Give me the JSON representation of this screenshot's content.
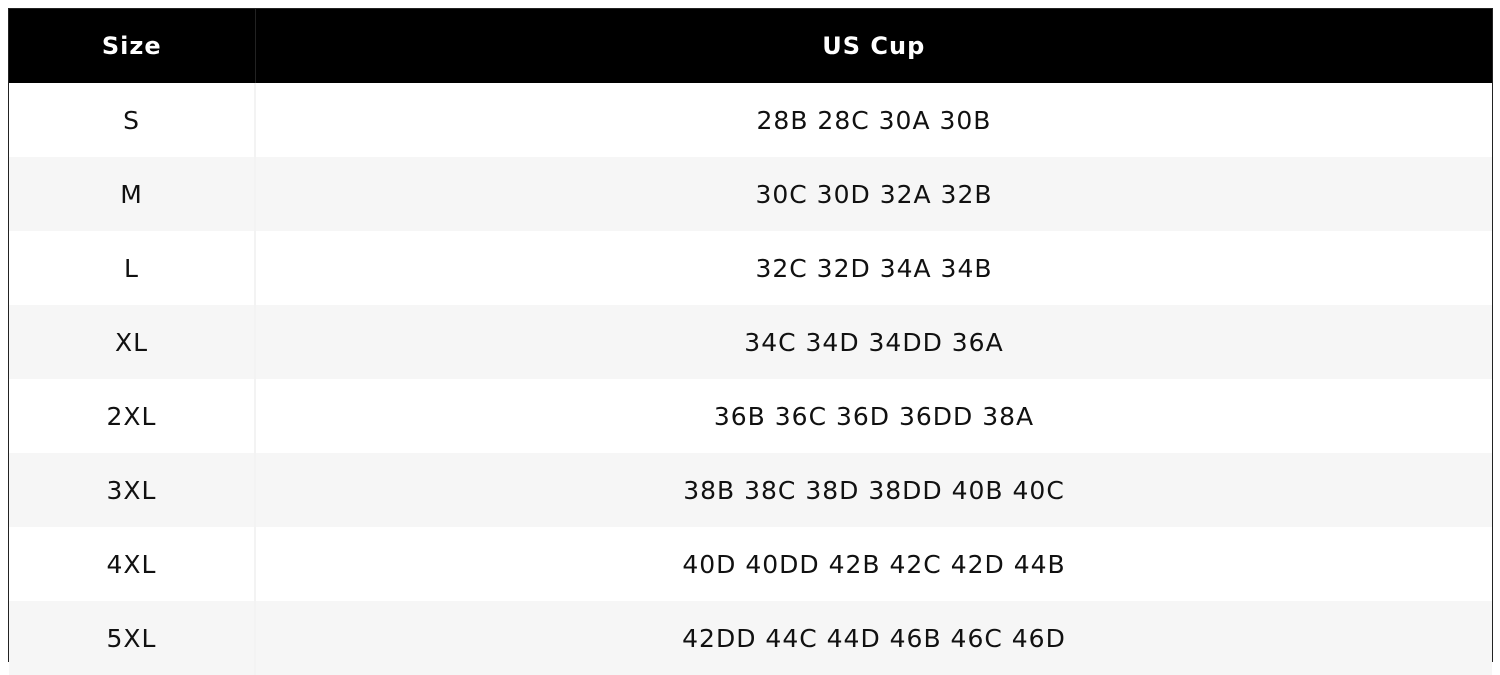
{
  "table": {
    "header": [
      "Size",
      "US Cup"
    ],
    "rows": [
      [
        "S",
        "28B 28C 30A 30B"
      ],
      [
        "M",
        "30C 30D 32A 32B"
      ],
      [
        "L",
        "32C 32D 34A 34B"
      ],
      [
        "XL",
        "34C 34D 34DD 36A"
      ],
      [
        "2XL",
        "36B 36C 36D 36DD 38A"
      ],
      [
        "3XL",
        "38B 38C 38D 38DD 40B 40C"
      ],
      [
        "4XL",
        "40D 40DD 42B 42C 42D 44B"
      ],
      [
        "5XL",
        "42DD 44C 44D 46B 46C 46D"
      ]
    ]
  }
}
